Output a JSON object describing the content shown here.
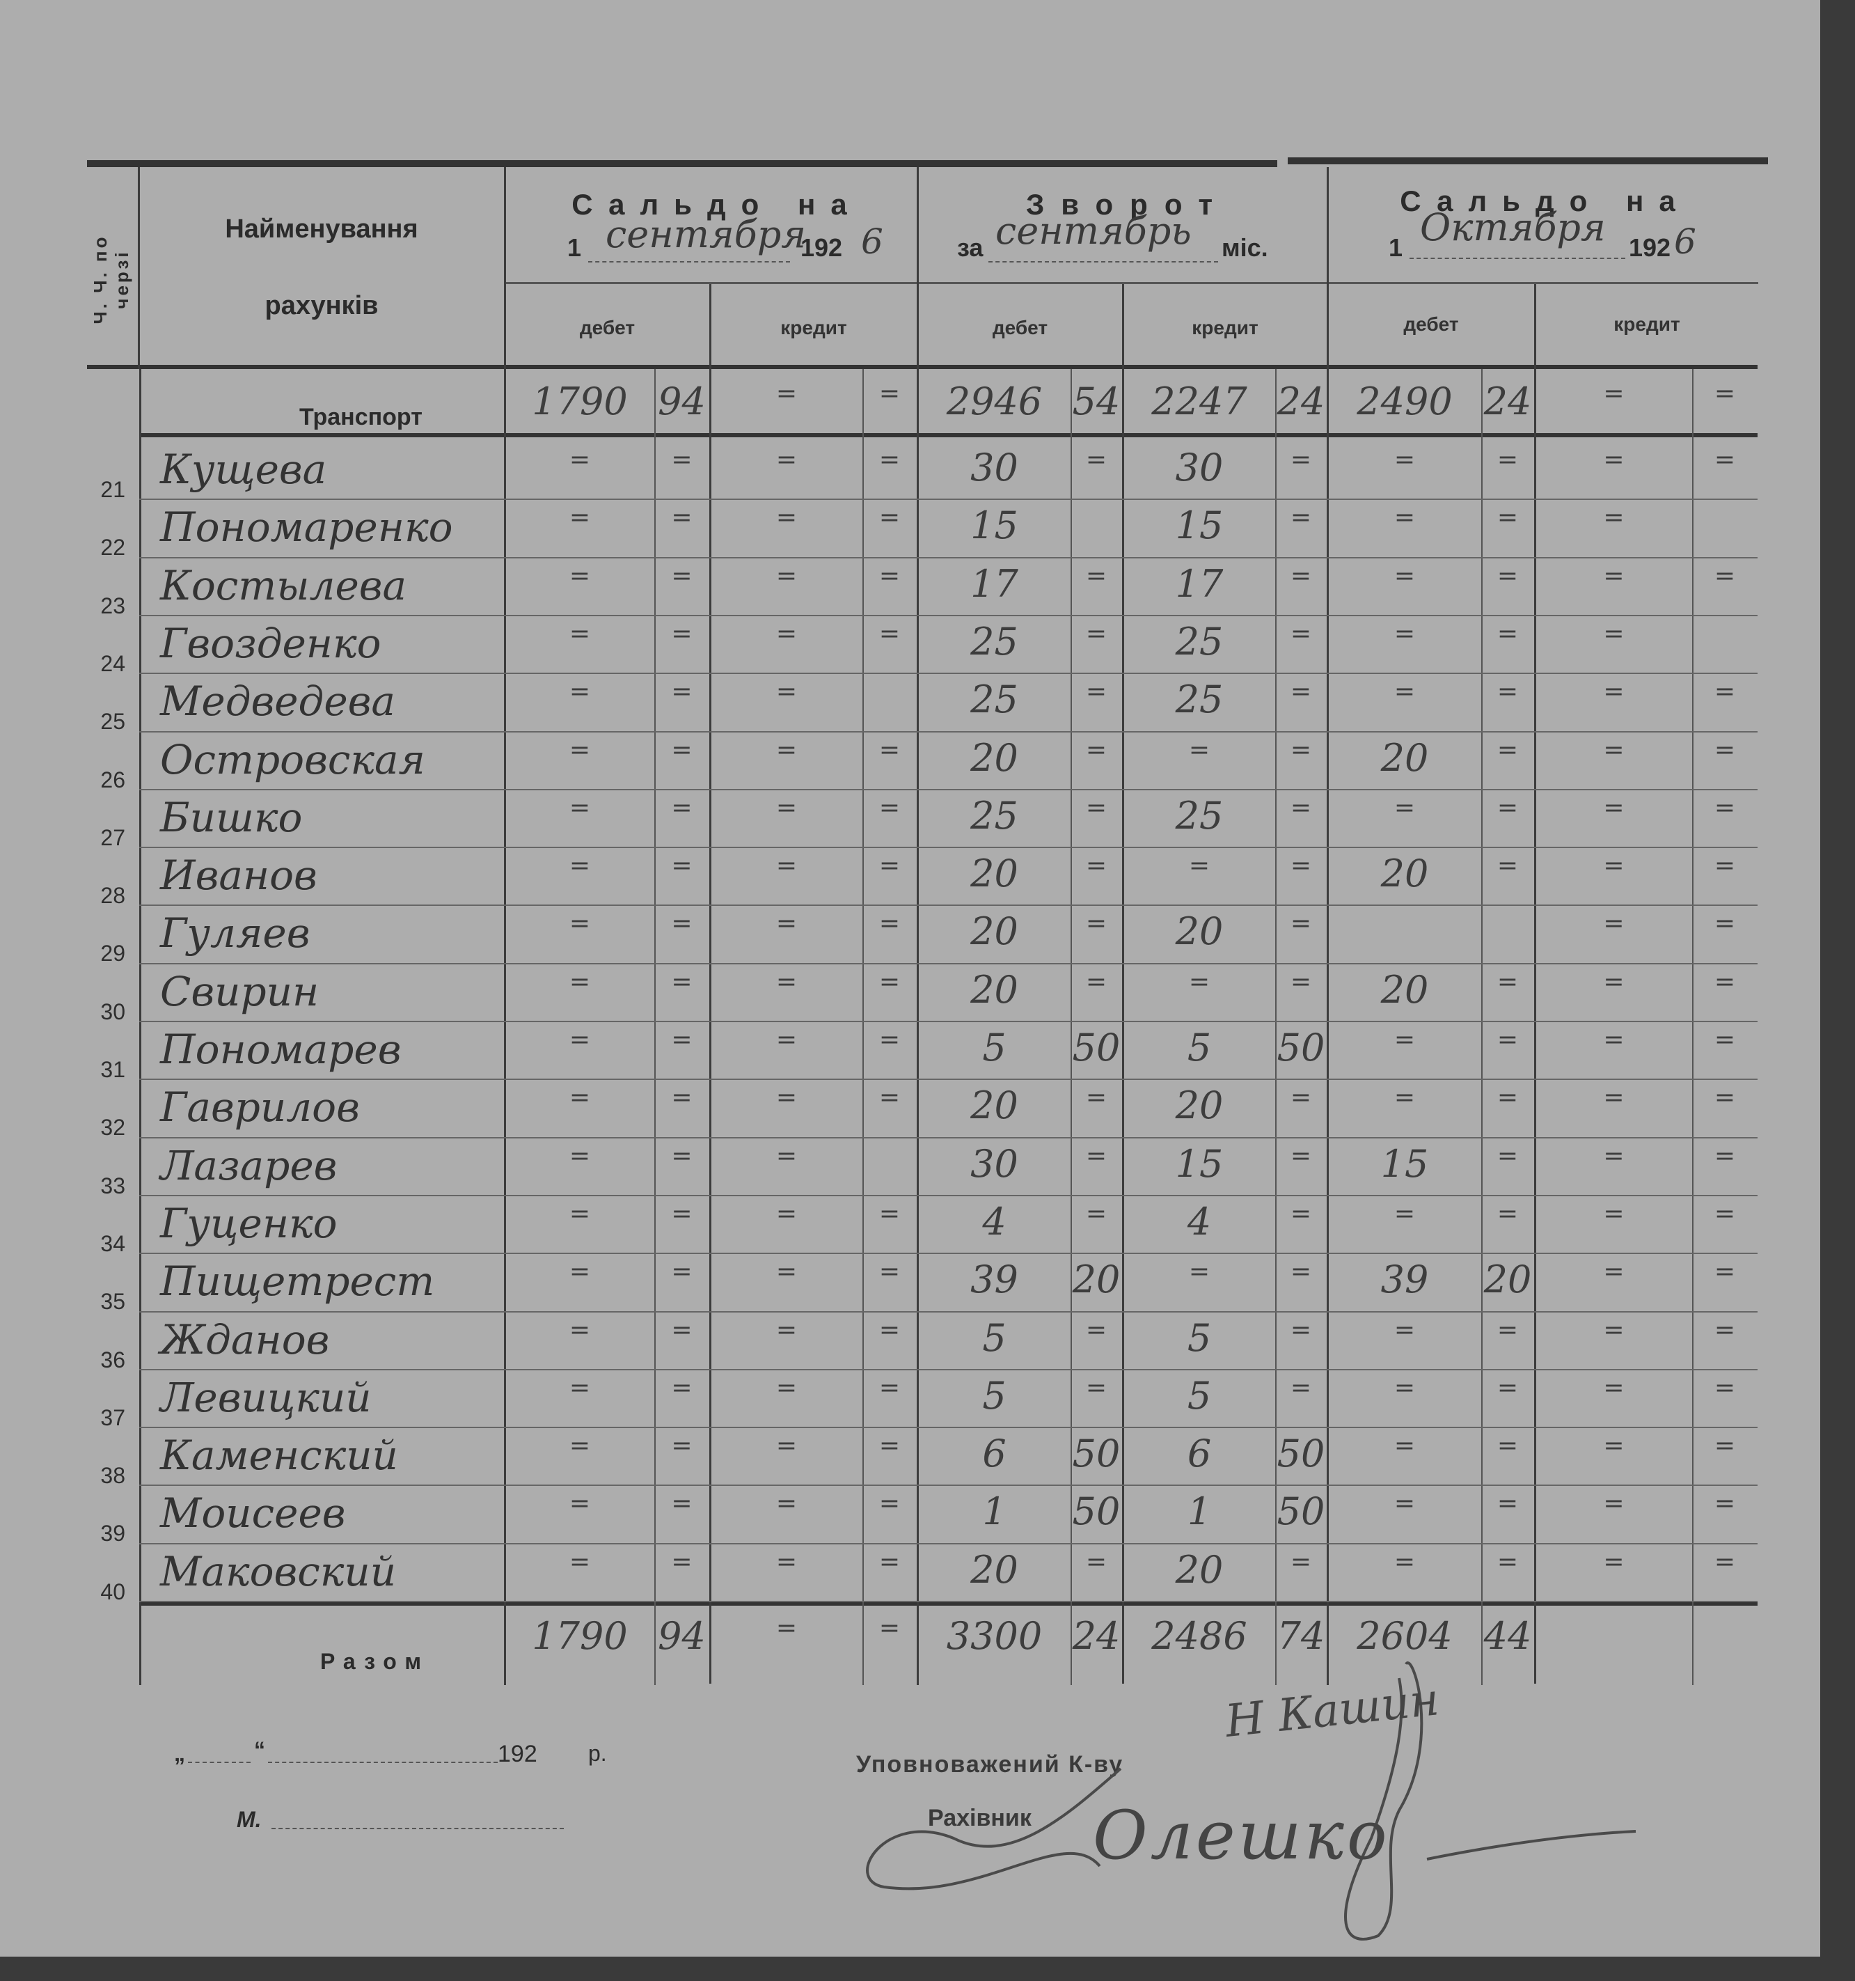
{
  "header": {
    "col_number": "Ч. Ч. по черзі",
    "col_name_1": "Найменування",
    "col_name_2": "рахунків",
    "opening_balance": {
      "title": "Сальдо на",
      "day": "1",
      "month": "сентября",
      "year_printed": "192",
      "year_written": "6"
    },
    "turnover": {
      "title": "Зворот",
      "prefix": "за",
      "month": "сентябрь",
      "suffix": "міс."
    },
    "closing_balance": {
      "title": "Сальдо на",
      "day": "1",
      "month": "Октября",
      "year_printed": "192",
      "year_written": "6"
    },
    "debit": "дебет",
    "credit": "кредит"
  },
  "transport": {
    "label": "Транспорт",
    "cells": [
      "1790",
      "94",
      "=",
      "=",
      "2946",
      "54",
      "2247",
      "24",
      "2490",
      "24",
      "=",
      "="
    ]
  },
  "rows": [
    {
      "n": "21",
      "name": "Кущева",
      "cells": [
        "=",
        "=",
        "=",
        "=",
        "30",
        "=",
        "30",
        "=",
        "=",
        "=",
        "=",
        "="
      ]
    },
    {
      "n": "22",
      "name": "Пономаренко",
      "cells": [
        "=",
        "=",
        "=",
        "=",
        "15",
        "",
        "15",
        "=",
        "=",
        "=",
        "=",
        ""
      ]
    },
    {
      "n": "23",
      "name": "Костылева",
      "cells": [
        "=",
        "=",
        "=",
        "=",
        "17",
        "=",
        "17",
        "=",
        "=",
        "=",
        "=",
        "="
      ]
    },
    {
      "n": "24",
      "name": "Гвозденко",
      "cells": [
        "=",
        "=",
        "=",
        "=",
        "25",
        "=",
        "25",
        "=",
        "=",
        "=",
        "=",
        ""
      ]
    },
    {
      "n": "25",
      "name": "Медведева",
      "cells": [
        "=",
        "=",
        "=",
        "",
        "25",
        "=",
        "25",
        "=",
        "=",
        "=",
        "=",
        "="
      ]
    },
    {
      "n": "26",
      "name": "Островская",
      "cells": [
        "=",
        "=",
        "=",
        "=",
        "20",
        "=",
        "=",
        "=",
        "20",
        "=",
        "=",
        "="
      ]
    },
    {
      "n": "27",
      "name": "Бишко",
      "cells": [
        "=",
        "=",
        "=",
        "=",
        "25",
        "=",
        "25",
        "=",
        "=",
        "=",
        "=",
        "="
      ]
    },
    {
      "n": "28",
      "name": "Иванов",
      "cells": [
        "=",
        "=",
        "=",
        "=",
        "20",
        "=",
        "=",
        "=",
        "20",
        "=",
        "=",
        "="
      ]
    },
    {
      "n": "29",
      "name": "Гуляев",
      "cells": [
        "=",
        "=",
        "=",
        "=",
        "20",
        "=",
        "20",
        "=",
        "",
        "",
        "=",
        "="
      ]
    },
    {
      "n": "30",
      "name": "Свирин",
      "cells": [
        "=",
        "=",
        "=",
        "=",
        "20",
        "=",
        "=",
        "=",
        "20",
        "=",
        "=",
        "="
      ]
    },
    {
      "n": "31",
      "name": "Пономарев",
      "cells": [
        "=",
        "=",
        "=",
        "=",
        "5",
        "50",
        "5",
        "50",
        "=",
        "=",
        "=",
        "="
      ]
    },
    {
      "n": "32",
      "name": "Гаврилов",
      "cells": [
        "=",
        "=",
        "=",
        "=",
        "20",
        "=",
        "20",
        "=",
        "=",
        "=",
        "=",
        "="
      ]
    },
    {
      "n": "33",
      "name": "Лазарев",
      "cells": [
        "=",
        "=",
        "=",
        "",
        "30",
        "=",
        "15",
        "=",
        "15",
        "=",
        "=",
        "="
      ]
    },
    {
      "n": "34",
      "name": "Гуценко",
      "cells": [
        "=",
        "=",
        "=",
        "=",
        "4",
        "=",
        "4",
        "=",
        "=",
        "=",
        "=",
        "="
      ]
    },
    {
      "n": "35",
      "name": "Пищетрест",
      "cells": [
        "=",
        "=",
        "=",
        "=",
        "39",
        "20",
        "=",
        "=",
        "39",
        "20",
        "=",
        "="
      ]
    },
    {
      "n": "36",
      "name": "Жданов",
      "cells": [
        "=",
        "=",
        "=",
        "=",
        "5",
        "=",
        "5",
        "=",
        "=",
        "=",
        "=",
        "="
      ]
    },
    {
      "n": "37",
      "name": "Левицкий",
      "cells": [
        "=",
        "=",
        "=",
        "=",
        "5",
        "=",
        "5",
        "=",
        "=",
        "=",
        "=",
        "="
      ]
    },
    {
      "n": "38",
      "name": "Каменский",
      "cells": [
        "=",
        "=",
        "=",
        "=",
        "6",
        "50",
        "6",
        "50",
        "=",
        "=",
        "=",
        "="
      ]
    },
    {
      "n": "39",
      "name": "Моисеев",
      "cells": [
        "=",
        "=",
        "=",
        "=",
        "1",
        "50",
        "1",
        "50",
        "=",
        "=",
        "=",
        "="
      ]
    },
    {
      "n": "40",
      "name": "Маковский",
      "cells": [
        "=",
        "=",
        "=",
        "=",
        "20",
        "=",
        "20",
        "=",
        "=",
        "=",
        "=",
        "="
      ]
    }
  ],
  "total": {
    "label": "Разом",
    "cells": [
      "1790",
      "94",
      "=",
      "=",
      "3300",
      "24",
      "2486",
      "74",
      "2604",
      "44",
      "",
      ""
    ]
  },
  "footer": {
    "date_open": "„",
    "date_close": "“",
    "year": "192",
    "year_suffix": "р.",
    "place": "М.",
    "authorized": "Уповноважений К-ву",
    "accountant": "Рахівник",
    "signature_1": "Н Кашин",
    "signature_2": "Олешко"
  },
  "colors": {
    "paper": "#adadad",
    "ink": "#3a3a3a",
    "print": "#2b2b2b"
  }
}
